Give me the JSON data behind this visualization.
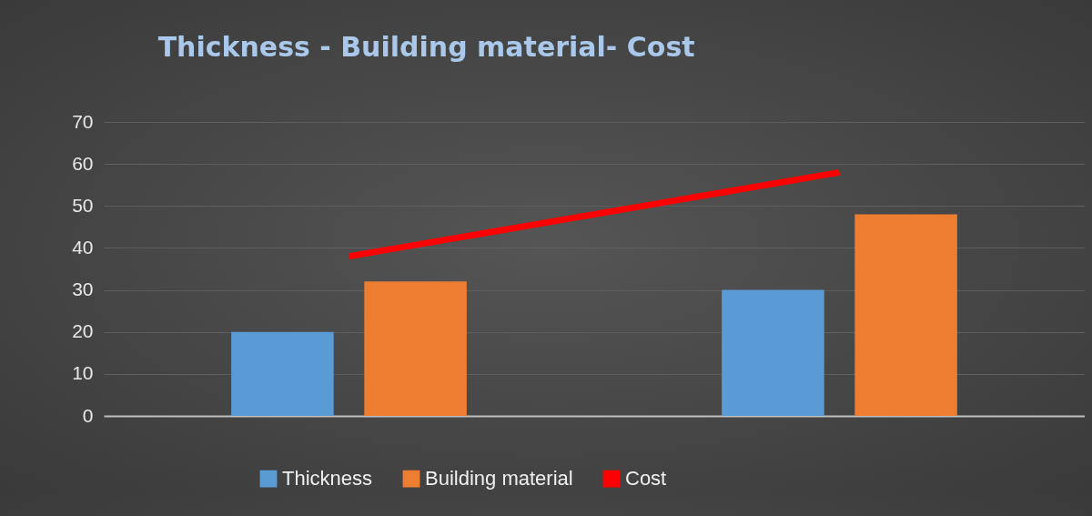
{
  "chart_data": {
    "type": "bar",
    "title": "Thickness - Building material- Cost",
    "categories": [
      null,
      null
    ],
    "series": [
      {
        "name": "Thickness",
        "color": "#5b9bd5",
        "values": [
          20,
          30
        ]
      },
      {
        "name": "Building material",
        "color": "#ed7d31",
        "values": [
          32,
          48
        ]
      },
      {
        "name": "Cost",
        "type": "line",
        "color": "#ff0000",
        "values": [
          38,
          58
        ]
      }
    ],
    "ylim": [
      0,
      70
    ],
    "yticks": [
      0,
      10,
      20,
      30,
      40,
      50,
      60,
      70
    ],
    "grid": "y",
    "legend": "bottom",
    "tick_labels": "y"
  }
}
